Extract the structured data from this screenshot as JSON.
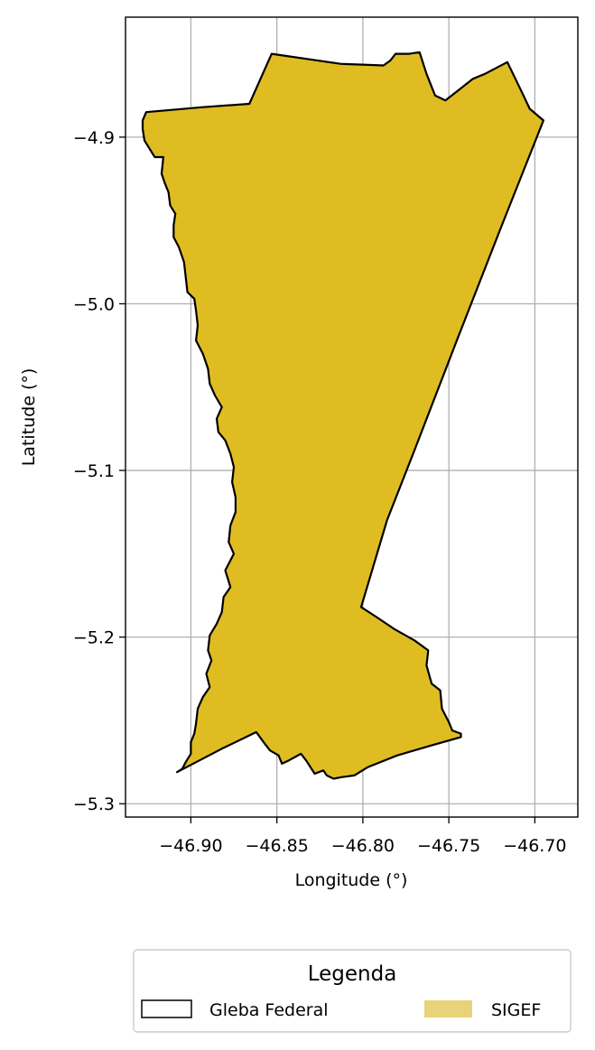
{
  "chart_data": {
    "type": "map",
    "xlabel": "Longitude (°)",
    "ylabel": "Latitude (°)",
    "xlim": [
      -46.938,
      -46.675
    ],
    "ylim": [
      -5.308,
      -4.828
    ],
    "x_ticks": [
      -46.9,
      -46.85,
      -46.8,
      -46.75,
      -46.7
    ],
    "x_tick_labels": [
      "−46.90",
      "−46.85",
      "−46.80",
      "−46.75",
      "−46.70"
    ],
    "y_ticks": [
      -4.9,
      -5.0,
      -5.1,
      -5.2,
      -5.3
    ],
    "y_tick_labels": [
      "−4.9",
      "−5.0",
      "−5.1",
      "−5.2",
      "−5.3"
    ],
    "grid": true,
    "legend": {
      "title": "Legenda",
      "placement": "bottom-center",
      "entries": [
        {
          "label": "Gleba Federal",
          "style": "outline",
          "color": "#000000"
        },
        {
          "label": "SIGEF",
          "style": "fill",
          "color": "#e8d27a"
        }
      ]
    },
    "polygon": {
      "fill": "#dfbd22",
      "stroke": "#000000",
      "coordinates": [
        [
          -46.853,
          -4.85
        ],
        [
          -46.813,
          -4.856
        ],
        [
          -46.788,
          -4.857
        ],
        [
          -46.784,
          -4.854
        ],
        [
          -46.781,
          -4.85
        ],
        [
          -46.773,
          -4.85
        ],
        [
          -46.767,
          -4.849
        ],
        [
          -46.763,
          -4.862
        ],
        [
          -46.758,
          -4.875
        ],
        [
          -46.752,
          -4.878
        ],
        [
          -46.736,
          -4.865
        ],
        [
          -46.729,
          -4.862
        ],
        [
          -46.716,
          -4.855
        ],
        [
          -46.708,
          -4.872
        ],
        [
          -46.703,
          -4.883
        ],
        [
          -46.695,
          -4.89
        ],
        [
          -46.7,
          -4.903
        ],
        [
          -46.72,
          -4.955
        ],
        [
          -46.745,
          -5.021
        ],
        [
          -46.77,
          -5.088
        ],
        [
          -46.786,
          -5.13
        ],
        [
          -46.801,
          -5.182
        ],
        [
          -46.792,
          -5.188
        ],
        [
          -46.782,
          -5.195
        ],
        [
          -46.77,
          -5.202
        ],
        [
          -46.762,
          -5.208
        ],
        [
          -46.763,
          -5.217
        ],
        [
          -46.76,
          -5.228
        ],
        [
          -46.755,
          -5.232
        ],
        [
          -46.754,
          -5.243
        ],
        [
          -46.75,
          -5.251
        ],
        [
          -46.748,
          -5.256
        ],
        [
          -46.743,
          -5.258
        ],
        [
          -46.743,
          -5.26
        ],
        [
          -46.76,
          -5.265
        ],
        [
          -46.78,
          -5.271
        ],
        [
          -46.797,
          -5.278
        ],
        [
          -46.805,
          -5.283
        ],
        [
          -46.812,
          -5.284
        ],
        [
          -46.817,
          -5.285
        ],
        [
          -46.821,
          -5.283
        ],
        [
          -46.823,
          -5.28
        ],
        [
          -46.828,
          -5.282
        ],
        [
          -46.833,
          -5.274
        ],
        [
          -46.836,
          -5.27
        ],
        [
          -46.843,
          -5.274
        ],
        [
          -46.847,
          -5.276
        ],
        [
          -46.849,
          -5.271
        ],
        [
          -46.854,
          -5.268
        ],
        [
          -46.857,
          -5.264
        ],
        [
          -46.862,
          -5.257
        ],
        [
          -46.882,
          -5.267
        ],
        [
          -46.908,
          -5.281
        ],
        [
          -46.905,
          -5.279
        ],
        [
          -46.903,
          -5.275
        ],
        [
          -46.9,
          -5.27
        ],
        [
          -46.9,
          -5.263
        ],
        [
          -46.898,
          -5.258
        ],
        [
          -46.897,
          -5.252
        ],
        [
          -46.896,
          -5.243
        ],
        [
          -46.893,
          -5.236
        ],
        [
          -46.889,
          -5.23
        ],
        [
          -46.891,
          -5.222
        ],
        [
          -46.888,
          -5.214
        ],
        [
          -46.89,
          -5.208
        ],
        [
          -46.889,
          -5.199
        ],
        [
          -46.885,
          -5.192
        ],
        [
          -46.882,
          -5.185
        ],
        [
          -46.881,
          -5.176
        ],
        [
          -46.877,
          -5.17
        ],
        [
          -46.88,
          -5.16
        ],
        [
          -46.875,
          -5.15
        ],
        [
          -46.878,
          -5.143
        ],
        [
          -46.877,
          -5.133
        ],
        [
          -46.874,
          -5.125
        ],
        [
          -46.874,
          -5.116
        ],
        [
          -46.876,
          -5.107
        ],
        [
          -46.875,
          -5.098
        ],
        [
          -46.877,
          -5.09
        ],
        [
          -46.88,
          -5.082
        ],
        [
          -46.884,
          -5.077
        ],
        [
          -46.885,
          -5.069
        ],
        [
          -46.882,
          -5.062
        ],
        [
          -46.886,
          -5.055
        ],
        [
          -46.889,
          -5.048
        ],
        [
          -46.89,
          -5.039
        ],
        [
          -46.893,
          -5.03
        ],
        [
          -46.897,
          -5.022
        ],
        [
          -46.896,
          -5.013
        ],
        [
          -46.897,
          -5.004
        ],
        [
          -46.898,
          -4.997
        ],
        [
          -46.902,
          -4.993
        ],
        [
          -46.903,
          -4.984
        ],
        [
          -46.904,
          -4.975
        ],
        [
          -46.907,
          -4.966
        ],
        [
          -46.91,
          -4.96
        ],
        [
          -46.91,
          -4.953
        ],
        [
          -46.909,
          -4.946
        ],
        [
          -46.912,
          -4.941
        ],
        [
          -46.913,
          -4.933
        ],
        [
          -46.915,
          -4.928
        ],
        [
          -46.917,
          -4.922
        ],
        [
          -46.916,
          -4.912
        ],
        [
          -46.921,
          -4.912
        ],
        [
          -46.924,
          -4.907
        ],
        [
          -46.927,
          -4.902
        ],
        [
          -46.928,
          -4.895
        ],
        [
          -46.928,
          -4.89
        ],
        [
          -46.926,
          -4.885
        ],
        [
          -46.893,
          -4.882
        ],
        [
          -46.866,
          -4.88
        ],
        [
          -46.853,
          -4.85
        ]
      ]
    }
  }
}
